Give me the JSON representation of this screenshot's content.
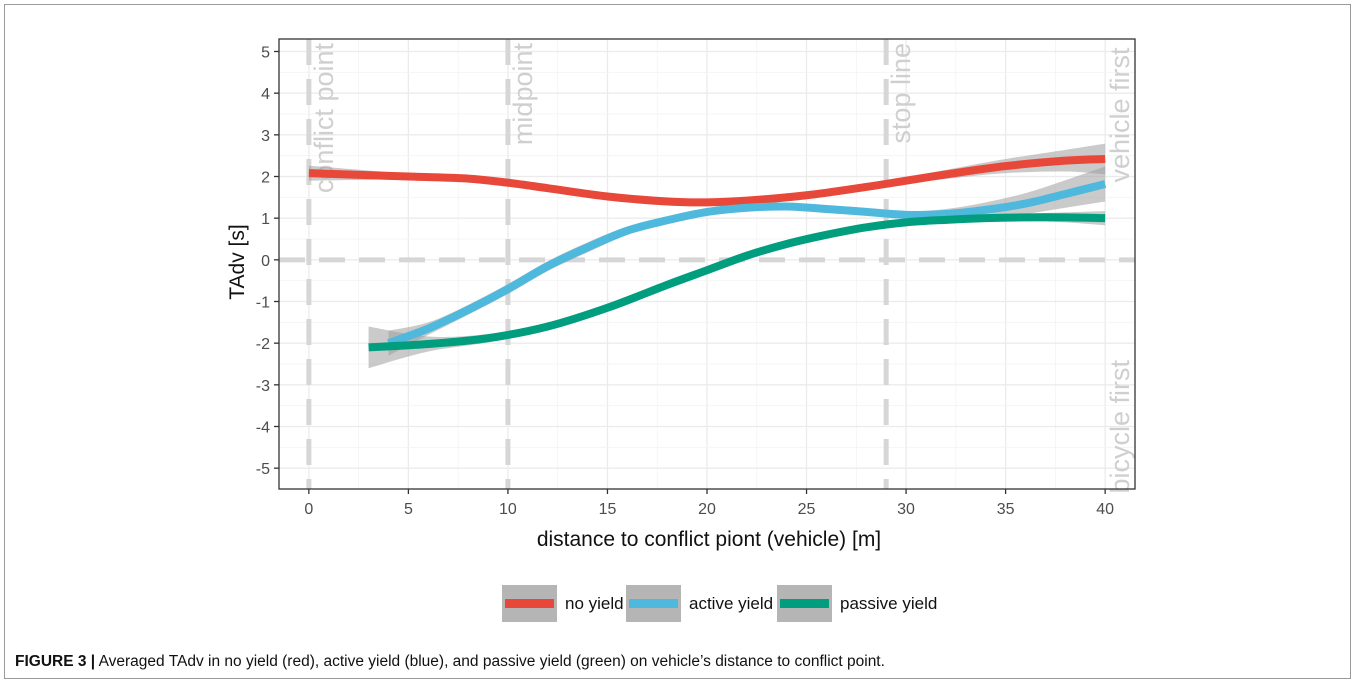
{
  "caption": {
    "label": "FIGURE 3 |",
    "text": "Averaged TAdv in no yield (red), active yield (blue), and passive yield (green) on vehicle’s distance to conflict point."
  },
  "chart_data": {
    "type": "line",
    "title": "",
    "xlabel": "distance to conflict piont (vehicle) [m]",
    "ylabel": "TAdv [s]",
    "xlim": [
      -1.5,
      41.5
    ],
    "ylim": [
      -5.5,
      5.3
    ],
    "x_ticks": [
      0,
      5,
      10,
      15,
      20,
      25,
      30,
      35,
      40
    ],
    "y_ticks": [
      -5,
      -4,
      -3,
      -2,
      -1,
      0,
      1,
      2,
      3,
      4,
      5
    ],
    "x_tick_labels": [
      "0",
      "5",
      "10",
      "15",
      "20",
      "25",
      "30",
      "35",
      "40"
    ],
    "y_tick_labels": [
      "-5",
      "-4",
      "-3",
      "-2",
      "-1",
      "0",
      "1",
      "2",
      "3",
      "4",
      "5"
    ],
    "grid": true,
    "legend_position": "bottom",
    "series": [
      {
        "name": "no yield",
        "color": "#E8483A",
        "x": [
          0,
          5,
          8,
          10,
          12,
          15,
          18,
          20,
          22,
          25,
          28,
          30,
          32,
          35,
          38,
          40
        ],
        "y": [
          2.08,
          2.0,
          1.95,
          1.85,
          1.72,
          1.52,
          1.4,
          1.38,
          1.42,
          1.55,
          1.75,
          1.9,
          2.05,
          2.25,
          2.38,
          2.42
        ],
        "ci_low": [
          1.9,
          1.93,
          1.9,
          1.8,
          1.67,
          1.47,
          1.35,
          1.33,
          1.37,
          1.5,
          1.68,
          1.82,
          1.94,
          2.08,
          2.12,
          2.05
        ],
        "ci_high": [
          2.26,
          2.07,
          2.0,
          1.9,
          1.77,
          1.57,
          1.45,
          1.43,
          1.47,
          1.6,
          1.82,
          1.98,
          2.16,
          2.42,
          2.64,
          2.79
        ]
      },
      {
        "name": "active yield",
        "color": "#4FB8DD",
        "x": [
          4,
          6,
          8,
          10,
          12,
          14,
          16,
          18,
          20,
          22,
          24,
          26,
          28,
          30,
          32,
          34,
          36,
          38,
          40
        ],
        "y": [
          -2.0,
          -1.65,
          -1.2,
          -0.7,
          -0.15,
          0.3,
          0.7,
          0.95,
          1.15,
          1.25,
          1.28,
          1.22,
          1.15,
          1.08,
          1.1,
          1.2,
          1.35,
          1.58,
          1.82
        ],
        "ci_low": [
          -2.3,
          -1.8,
          -1.32,
          -0.82,
          -0.27,
          0.18,
          0.6,
          0.87,
          1.07,
          1.17,
          1.2,
          1.14,
          1.07,
          1.0,
          0.98,
          1.02,
          1.1,
          1.25,
          1.4
        ],
        "ci_high": [
          -1.7,
          -1.5,
          -1.08,
          -0.58,
          -0.03,
          0.42,
          0.8,
          1.03,
          1.23,
          1.33,
          1.36,
          1.3,
          1.23,
          1.16,
          1.22,
          1.38,
          1.6,
          1.91,
          2.24
        ]
      },
      {
        "name": "passive yield",
        "color": "#009E7E",
        "x": [
          3,
          6,
          9,
          12,
          15,
          18,
          20,
          22,
          24,
          26,
          28,
          30,
          32,
          34,
          36,
          38,
          40
        ],
        "y": [
          -2.1,
          -2.02,
          -1.88,
          -1.6,
          -1.15,
          -0.6,
          -0.25,
          0.1,
          0.38,
          0.6,
          0.78,
          0.9,
          0.96,
          1.0,
          1.02,
          1.02,
          1.0
        ],
        "ci_low": [
          -2.6,
          -2.2,
          -1.98,
          -1.68,
          -1.23,
          -0.68,
          -0.33,
          0.02,
          0.3,
          0.52,
          0.7,
          0.82,
          0.88,
          0.92,
          0.93,
          0.9,
          0.83
        ],
        "ci_high": [
          -1.6,
          -1.84,
          -1.78,
          -1.52,
          -1.07,
          -0.52,
          -0.17,
          0.18,
          0.46,
          0.68,
          0.86,
          0.98,
          1.04,
          1.08,
          1.11,
          1.14,
          1.17
        ]
      }
    ],
    "reference_lines": [
      {
        "axis": "x",
        "value": 0,
        "label": "conflict point"
      },
      {
        "axis": "x",
        "value": 10,
        "label": "midpoint"
      },
      {
        "axis": "x",
        "value": 29,
        "label": "stop line"
      },
      {
        "axis": "y",
        "value": 0,
        "label": ""
      }
    ],
    "annotations": [
      {
        "text": "vehicle first",
        "x": 40,
        "y": 5,
        "orientation": "vertical"
      },
      {
        "text": "bicycle first",
        "x": 40,
        "y": -2.5,
        "orientation": "vertical"
      }
    ]
  }
}
